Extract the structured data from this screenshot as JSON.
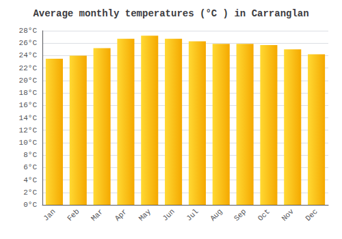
{
  "chart_data": {
    "type": "bar",
    "title": "Average monthly temperatures (°C ) in Carranglan",
    "categories": [
      "Jan",
      "Feb",
      "Mar",
      "Apr",
      "May",
      "Jun",
      "Jul",
      "Aug",
      "Sep",
      "Oct",
      "Nov",
      "Dec"
    ],
    "values": [
      23.5,
      24.0,
      25.2,
      26.7,
      27.2,
      26.7,
      26.3,
      25.9,
      25.9,
      25.7,
      25.0,
      24.2
    ],
    "color": "#F5A800",
    "ylim": [
      0,
      28
    ],
    "yticks": [
      {
        "value": 0,
        "label": "0°C"
      },
      {
        "value": 2,
        "label": "2°C"
      },
      {
        "value": 4,
        "label": "4°C"
      },
      {
        "value": 6,
        "label": "6°C"
      },
      {
        "value": 8,
        "label": "8°C"
      },
      {
        "value": 10,
        "label": "10°C"
      },
      {
        "value": 12,
        "label": "12°C"
      },
      {
        "value": 14,
        "label": "14°C"
      },
      {
        "value": 16,
        "label": "16°C"
      },
      {
        "value": 18,
        "label": "18°C"
      },
      {
        "value": 20,
        "label": "20°C"
      },
      {
        "value": 22,
        "label": "22°C"
      },
      {
        "value": 24,
        "label": "24°C"
      },
      {
        "value": 26,
        "label": "26°C"
      },
      {
        "value": 28,
        "label": "28°C"
      }
    ],
    "grid": true
  }
}
